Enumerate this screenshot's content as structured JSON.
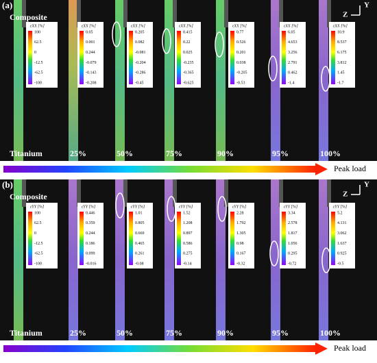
{
  "panels": [
    {
      "label": "(a)",
      "top_label": "Composite",
      "bottom_label": "Titanium",
      "axis_y": "Y",
      "axis_z": "Z",
      "arrow_label": "Peak load",
      "columns": [
        {
          "colorbar_title": "εXX [%]",
          "ticks": [
            "100",
            "62.5",
            "0",
            "-12.5",
            "-62.5",
            "-100"
          ]
        },
        {
          "load": "25%",
          "colorbar_title": "εXX [%]",
          "ticks": [
            "0.05",
            "0.001",
            "0.244",
            "-0.079",
            "-0.143",
            "-0.208"
          ]
        },
        {
          "load": "50%",
          "colorbar_title": "εXX [%]",
          "ticks": [
            "0.205",
            "0.082",
            "-0.081",
            "-0.204",
            "-0.286",
            "-0.45"
          ]
        },
        {
          "load": "75%",
          "colorbar_title": "εXX [%]",
          "ticks": [
            "0.415",
            "0.22",
            "0.025",
            "-0.235",
            "-0.365",
            "-0.625"
          ]
        },
        {
          "load": "90%",
          "colorbar_title": "εXX [%]",
          "ticks": [
            "0.77",
            "0.526",
            "0.201",
            "0.038",
            "-0.205",
            "-0.53"
          ]
        },
        {
          "load": "95%",
          "colorbar_title": "εXX [%]",
          "ticks": [
            "6.05",
            "4.653",
            "3.256",
            "2.791",
            "0.462",
            "-1.4"
          ]
        },
        {
          "load": "100%",
          "colorbar_title": "εXX [%]",
          "ticks": [
            "10.9",
            "8.537",
            "6.175",
            "3.812",
            "1.45",
            "-1.7"
          ]
        }
      ]
    },
    {
      "label": "(b)",
      "top_label": "Composite",
      "bottom_label": "Titanium",
      "axis_y": "Y",
      "axis_z": "Z",
      "arrow_label": "Peak load",
      "columns": [
        {
          "colorbar_title": "εYY [%]",
          "ticks": [
            "100",
            "62.5",
            "0",
            "-12.5",
            "-62.5",
            "-100"
          ]
        },
        {
          "load": "25%",
          "colorbar_title": "εYY [%]",
          "ticks": [
            "0.446",
            "0.359",
            "0.244",
            "0.186",
            "0.099",
            "-0.016"
          ]
        },
        {
          "load": "50%",
          "colorbar_title": "εYY [%]",
          "ticks": [
            "1.01",
            "0.805",
            "0.669",
            "0.465",
            "0.261",
            "-0.08"
          ]
        },
        {
          "load": "75%",
          "colorbar_title": "εYY [%]",
          "ticks": [
            "1.52",
            "1.208",
            "0.897",
            "0.586",
            "0.275",
            "-0.14"
          ]
        },
        {
          "load": "90%",
          "colorbar_title": "εYY [%]",
          "ticks": [
            "2.28",
            "1.792",
            "1.305",
            "0.98",
            "0.167",
            "-0.32"
          ]
        },
        {
          "load": "95%",
          "colorbar_title": "εYY [%]",
          "ticks": [
            "3.34",
            "2.578",
            "1.817",
            "1.056",
            "0.295",
            "-0.72"
          ]
        },
        {
          "load": "100%",
          "colorbar_title": "εYY [%]",
          "ticks": [
            "5.2",
            "4.131",
            "3.062",
            "1.637",
            "0.925",
            "-0.5"
          ]
        }
      ]
    }
  ]
}
